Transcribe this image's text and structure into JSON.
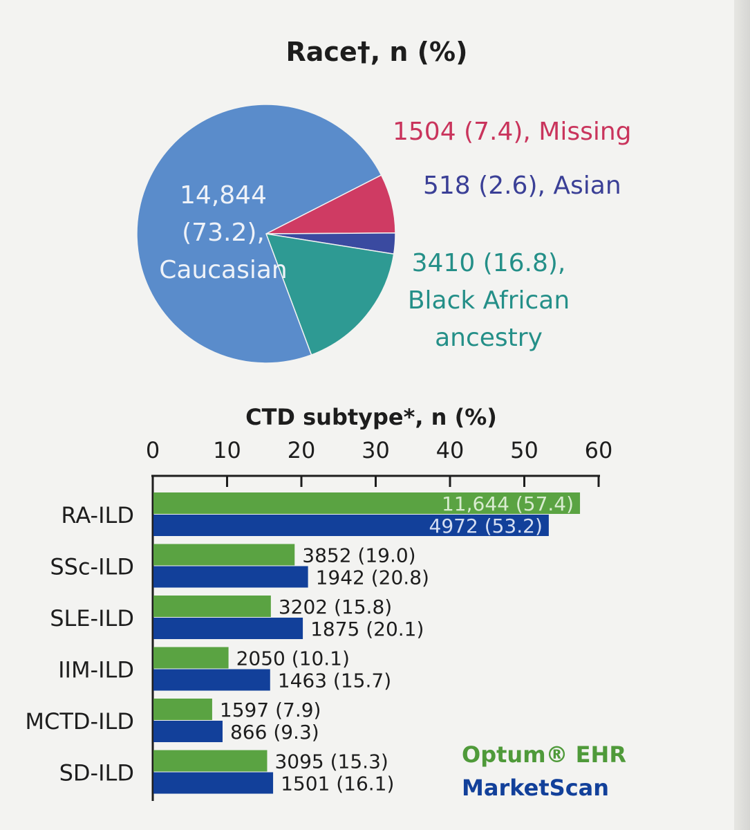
{
  "colors": {
    "caucasian": "#5a8ccb",
    "missing": "#cf3b63",
    "asian": "#3a4aa0",
    "black": "#2e9a93",
    "optum": "#5aa342",
    "marketscan": "#12409a",
    "missing_text": "#c9345c",
    "asian_text": "#3a3f96",
    "black_text": "#248f88",
    "optum_text": "#4f9a3a",
    "marketscan_text": "#12409a"
  },
  "chart_data": [
    {
      "type": "pie",
      "title": "Race†, n (%)",
      "slices": [
        {
          "key": "missing",
          "n": "1504",
          "pct": 7.4,
          "label_lines": [
            "1504 (7.4), Missing"
          ]
        },
        {
          "key": "asian",
          "n": "518",
          "pct": 2.6,
          "label_lines": [
            "518 (2.6), Asian"
          ]
        },
        {
          "key": "black",
          "n": "3410",
          "pct": 16.8,
          "label_lines": [
            "3410 (16.8),",
            "Black African",
            "ancestry"
          ]
        },
        {
          "key": "caucasian",
          "n": "14,844",
          "pct": 73.2,
          "label_lines": [
            "14,844",
            "(73.2),",
            "Caucasian"
          ]
        }
      ]
    },
    {
      "type": "bar",
      "orientation": "horizontal",
      "title": "CTD subtype*, n (%)",
      "xlim": [
        0,
        60
      ],
      "xticks": [
        "0",
        "10",
        "20",
        "30",
        "40",
        "50",
        "60"
      ],
      "categories": [
        "RA-ILD",
        "SSc-ILD",
        "SLE-ILD",
        "IIM-ILD",
        "MCTD-ILD",
        "SD-ILD"
      ],
      "series": [
        {
          "name": "Optum® EHR",
          "key": "optum",
          "values": [
            57.4,
            19.0,
            15.8,
            10.1,
            7.9,
            15.3
          ],
          "labels": [
            "11,644 (57.4)",
            "3852 (19.0)",
            "3202 (15.8)",
            "2050 (10.1)",
            "1597 (7.9)",
            "3095 (15.3)"
          ]
        },
        {
          "name": "MarketScan",
          "key": "marketscan",
          "values": [
            53.2,
            20.8,
            20.1,
            15.7,
            9.3,
            16.1
          ],
          "labels": [
            "4972 (53.2)",
            "1942 (20.8)",
            "1875 (20.1)",
            "1463 (15.7)",
            "866 (9.3)",
            "1501 (16.1)"
          ]
        }
      ],
      "legend_position": "bottom-right"
    }
  ]
}
